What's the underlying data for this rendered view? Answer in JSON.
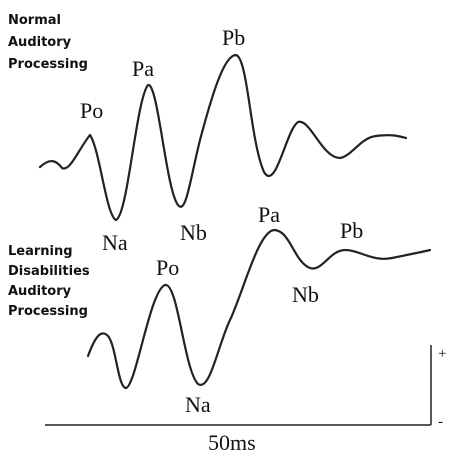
{
  "normal": {
    "label_lines": [
      "Normal",
      "Auditory",
      "Processing"
    ],
    "peak_labels": [
      "Po",
      "Na",
      "Pa",
      "Nb",
      "Pb"
    ]
  },
  "learning_disabilities": {
    "label_lines": [
      "Learning",
      "Disabilities",
      "Auditory",
      "Processing"
    ],
    "peak_labels": [
      "Po",
      "Na",
      "Pa",
      "Nb",
      "Pb"
    ]
  },
  "scale": {
    "time": "50ms",
    "plus": "+",
    "minus": "-"
  }
}
